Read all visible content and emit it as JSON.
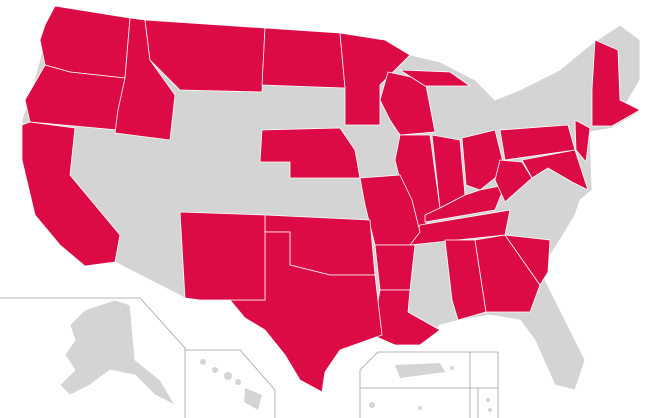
{
  "map": {
    "colors": {
      "highlight": "#dc0a45",
      "base": "#d4d4d4",
      "border": "#ffffff",
      "inset_frame": "#a0a0a0"
    },
    "state_status": {
      "WA": "highlight",
      "OR": "highlight",
      "CA": "highlight",
      "ID": "highlight",
      "MT": "highlight",
      "ND": "highlight",
      "MN": "highlight",
      "NE": "highlight",
      "WI": "highlight",
      "MI_UP": "highlight",
      "IL": "highlight",
      "IN": "highlight",
      "OH": "highlight",
      "KY": "highlight",
      "TN": "highlight",
      "WV": "highlight",
      "PA": "highlight",
      "MD": "highlight",
      "NJ": "highlight",
      "NE_ENG": "highlight",
      "MO": "highlight",
      "AR": "highlight",
      "LA": "highlight",
      "OK": "highlight",
      "TX": "highlight",
      "NM": "highlight",
      "AL": "highlight",
      "GA": "highlight",
      "SC": "highlight",
      "NV": "base",
      "UT": "base",
      "AZ": "base",
      "CO": "base",
      "WY": "base",
      "SD": "base",
      "KS": "base",
      "IA": "base",
      "MI": "base",
      "MS": "base",
      "FL": "base",
      "NC": "base",
      "VA": "base",
      "NY": "base",
      "ME": "base",
      "AK": "base",
      "HI": "base",
      "PR": "base"
    }
  }
}
